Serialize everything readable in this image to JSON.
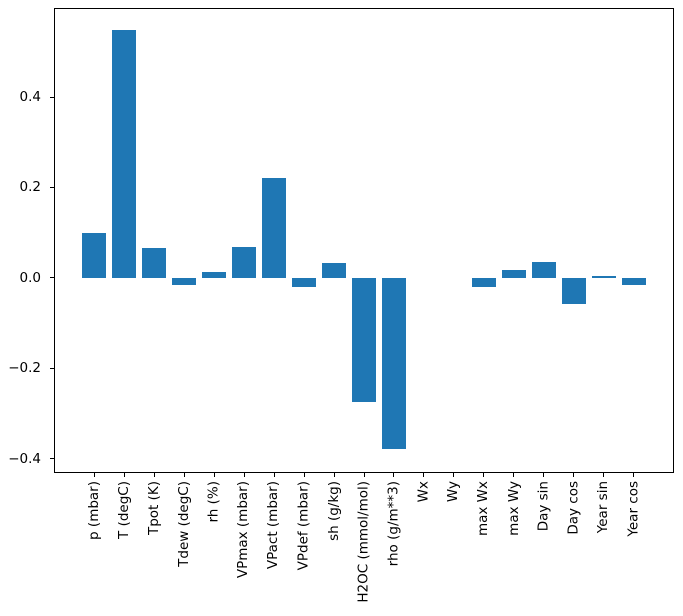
{
  "figure": {
    "background": "#ffffff",
    "axis_color": "#000000",
    "tick_label_color": "#000000"
  },
  "chart_data": {
    "type": "bar",
    "title": "",
    "xlabel": "",
    "ylabel": "",
    "grid": false,
    "legend": null,
    "bar_color": "#1f77b4",
    "categories": [
      "p (mbar)",
      "T (degC)",
      "Tpot (K)",
      "Tdew (degC)",
      "rh (%)",
      "VPmax (mbar)",
      "VPact (mbar)",
      "VPdef (mbar)",
      "sh (g/kg)",
      "H2OC (mmol/mol)",
      "rho (g/m**3)",
      "Wx",
      "Wy",
      "max Wx",
      "max Wy",
      "Day sin",
      "Day cos",
      "Year sin",
      "Year cos"
    ],
    "values": [
      0.1,
      0.548,
      0.065,
      -0.016,
      0.013,
      0.068,
      0.22,
      -0.021,
      0.033,
      -0.274,
      -0.379,
      0.0,
      0.0,
      -0.02,
      0.017,
      0.035,
      -0.058,
      0.003,
      -0.016
    ],
    "ylim": [
      -0.432,
      0.597
    ],
    "yticks": [
      0.4,
      0.2,
      0.0,
      -0.2,
      -0.4
    ],
    "ytick_labels": [
      "0.4",
      "0.2",
      "0.0",
      "−0.2",
      "−0.4"
    ],
    "xtick_label_rotation": 90,
    "bar_width_fraction": 0.8
  }
}
